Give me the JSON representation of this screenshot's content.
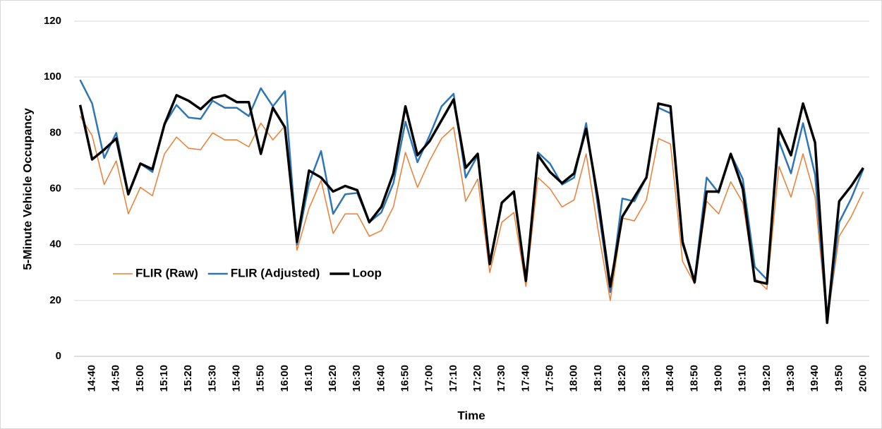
{
  "chart_data": {
    "type": "line",
    "x_label": "Time",
    "y_label": "5-Minute Vehicle Occupancy",
    "categories": [
      null,
      "14:40",
      null,
      "14:50",
      null,
      "15:00",
      null,
      "15:10",
      null,
      "15:20",
      null,
      "15:30",
      null,
      "15:40",
      null,
      "15:50",
      null,
      "16:00",
      null,
      "16:10",
      null,
      "16:20",
      null,
      "16:30",
      null,
      "16:40",
      null,
      "16:50",
      null,
      "17:00",
      null,
      "17:10",
      null,
      "17:20",
      null,
      "17:30",
      null,
      "17:40",
      null,
      "17:50",
      null,
      "18:00",
      null,
      "18:10",
      null,
      "18:20",
      null,
      "18:30",
      null,
      "18:40",
      null,
      "18:50",
      null,
      "19:00",
      null,
      "19:10",
      null,
      "19:20",
      null,
      "19:30",
      null,
      "19:40",
      null,
      "19:50",
      null,
      "20:00"
    ],
    "series": [
      {
        "name": "FLIR (Raw)",
        "color": "#ed7d31",
        "width": 1.5,
        "values": [
          86,
          79,
          61.5,
          70,
          51,
          60.5,
          57.5,
          72.5,
          78.5,
          74.5,
          74,
          80,
          77.5,
          77.5,
          75,
          83.5,
          77.5,
          82.5,
          38,
          53,
          63,
          44,
          51,
          51,
          43,
          45,
          53.5,
          73,
          60.5,
          70,
          78,
          82,
          55.5,
          63.5,
          30,
          48,
          51.5,
          25,
          64,
          60,
          53.5,
          56,
          72.5,
          45,
          20,
          49.5,
          48.5,
          56,
          78,
          76,
          34,
          26,
          55.5,
          51,
          62.5,
          55,
          28,
          24,
          68,
          57,
          72.5,
          57,
          12,
          43,
          50,
          59
        ]
      },
      {
        "name": "FLIR (Adjusted)",
        "color": "#2e75b6",
        "width": 2.5,
        "values": [
          99,
          90.5,
          71,
          80,
          58.5,
          69,
          66,
          83,
          90,
          85.5,
          85,
          91.5,
          89,
          89,
          86,
          96,
          89.5,
          95,
          40,
          62,
          73.5,
          51,
          58,
          58.5,
          48,
          51.5,
          62,
          84,
          69.5,
          79,
          89.5,
          94,
          64,
          72,
          34,
          55,
          59,
          27,
          73,
          69,
          61.5,
          64,
          83.5,
          53,
          23,
          56.5,
          55.5,
          64,
          89,
          87,
          40,
          27.5,
          64,
          58.5,
          72.5,
          63.5,
          32,
          27.5,
          77,
          65.5,
          83.5,
          65,
          12,
          48,
          56.5,
          67
        ]
      },
      {
        "name": "Loop",
        "color": "#000000",
        "width": 3.5,
        "values": [
          90,
          70.5,
          74,
          78,
          58,
          69,
          67,
          83,
          93.5,
          91.5,
          88.5,
          92.5,
          93.5,
          91,
          91,
          72.5,
          89,
          82,
          41,
          66.5,
          64,
          59,
          61,
          59.5,
          48,
          53.5,
          65.5,
          89.5,
          72,
          77,
          84.5,
          92,
          67.5,
          72.5,
          33,
          55,
          59,
          27,
          72,
          66,
          62,
          65.5,
          81.5,
          56,
          25,
          50,
          57,
          64,
          90.5,
          89.5,
          41,
          26.5,
          59,
          59,
          72.5,
          60,
          27,
          26,
          81.5,
          72,
          90.5,
          76.5,
          12,
          55.5,
          61,
          67.5
        ]
      }
    ],
    "ylim": [
      0,
      120
    ],
    "yticks": [
      0,
      20,
      40,
      60,
      80,
      100,
      120
    ],
    "grid": true,
    "legend": "inside-left"
  }
}
